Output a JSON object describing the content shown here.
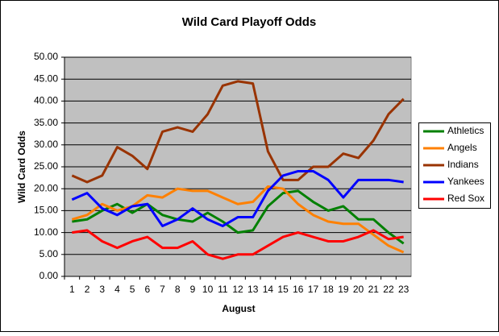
{
  "chart_data": {
    "type": "line",
    "title": "Wild Card Playoff Odds",
    "x_label": "August",
    "y_label": "Wild Card Odds",
    "categories": [
      "1",
      "2",
      "3",
      "4",
      "5",
      "6",
      "7",
      "8",
      "9",
      "10",
      "11",
      "12",
      "13",
      "14",
      "15",
      "16",
      "17",
      "18",
      "19",
      "20",
      "21",
      "22",
      "23"
    ],
    "ylim": [
      0,
      50
    ],
    "yticks": [
      {
        "value": 0,
        "label": "0.00"
      },
      {
        "value": 5,
        "label": "5.00"
      },
      {
        "value": 10,
        "label": "10.00"
      },
      {
        "value": 15,
        "label": "15.00"
      },
      {
        "value": 20,
        "label": "20.00"
      },
      {
        "value": 25,
        "label": "25.00"
      },
      {
        "value": 30,
        "label": "30.00"
      },
      {
        "value": 35,
        "label": "35.00"
      },
      {
        "value": 40,
        "label": "40.00"
      },
      {
        "value": 45,
        "label": "45.00"
      },
      {
        "value": 50,
        "label": "50.00"
      }
    ],
    "grid": true,
    "legend": "right",
    "series": [
      {
        "name": "Athletics",
        "color": "#008000",
        "values": [
          12.5,
          13,
          15,
          16.5,
          14.5,
          16.5,
          14,
          13,
          12.5,
          14.5,
          12.5,
          10,
          10.5,
          16,
          19,
          19.5,
          17,
          15,
          16,
          13,
          13,
          10,
          7.5
        ]
      },
      {
        "name": "Angels",
        "color": "#ff8000",
        "values": [
          13,
          14,
          16.5,
          15,
          16,
          18.5,
          18,
          20,
          19.5,
          19.5,
          18,
          16.5,
          17,
          20.5,
          20,
          16.5,
          14,
          12.5,
          12,
          12,
          9.5,
          7,
          5.5
        ]
      },
      {
        "name": "Indians",
        "color": "#993300",
        "values": [
          23,
          21.5,
          23,
          29.5,
          27.5,
          24.5,
          33,
          34,
          33,
          37,
          43.5,
          44.5,
          44,
          28.5,
          22,
          22,
          25,
          25,
          28,
          27,
          31,
          37,
          40.5
        ]
      },
      {
        "name": "Yankees",
        "color": "#0000ff",
        "values": [
          17.5,
          19,
          15.5,
          14,
          16,
          16.5,
          11.5,
          13,
          15.5,
          13,
          11.5,
          13.5,
          13.5,
          19.5,
          23,
          24,
          24,
          22,
          18,
          22,
          22,
          22,
          21.5
        ]
      },
      {
        "name": "Red Sox",
        "color": "#ff0000",
        "values": [
          10,
          10.5,
          8,
          6.5,
          8,
          9,
          6.5,
          6.5,
          8,
          5,
          4,
          5,
          5,
          7,
          9,
          10,
          9,
          8,
          8,
          9,
          10.5,
          8.5,
          9
        ]
      }
    ]
  }
}
